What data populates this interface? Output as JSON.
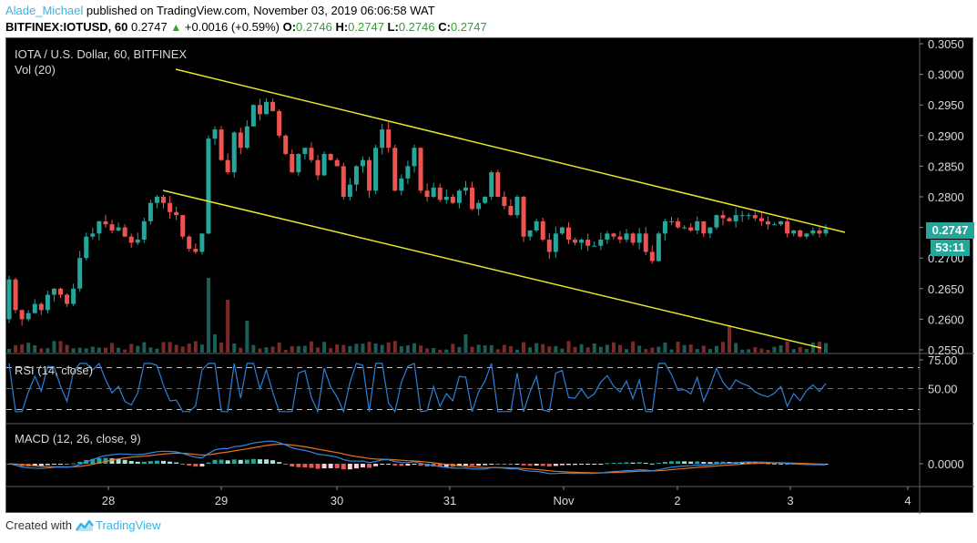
{
  "header": {
    "author": "Alade_Michael",
    "published_text": " published on TradingView.com, November 03, 2019 06:06:58 WAT",
    "symbol": "BITFINEX:IOTUSD, 60",
    "last_price": "0.2747",
    "change_arrow": "▲",
    "change": "+0.0016 (+0.59%)",
    "open_label": "O:",
    "open": "0.2746",
    "high_label": "H:",
    "high": "0.2747",
    "low_label": "L:",
    "low": "0.2746",
    "close_label": "C:",
    "close": "0.2747"
  },
  "legends": {
    "title": "IOTA / U.S. Dollar, 60, BITFINEX",
    "volume": "Vol (20)",
    "rsi": "RSI (14, close)",
    "macd": "MACD (12, 26, close, 9)"
  },
  "price_tag": {
    "price": "0.2747",
    "timer": "53:11"
  },
  "footer": {
    "created_with": "Created with",
    "brand": "TradingView"
  },
  "colors": {
    "up": "#26a69a",
    "down": "#ef5350",
    "vol_up": "#1b5e57",
    "vol_down": "#7b2a2a",
    "trendline": "#e6e62e",
    "rsi": "#2e7fd6",
    "macd": "#2e8ae6",
    "signal": "#e8731a",
    "hist_up_strong": "#26a69a",
    "hist_up_weak": "#b2dfdb",
    "hist_down_strong": "#ef5350",
    "hist_down_weak": "#ffcdd2",
    "background": "#000000",
    "axis_text": "#d9d9d9"
  },
  "chart_data": {
    "type": "candlestick",
    "title": "IOTA / U.S. Dollar, 60, BITFINEX",
    "price_axis": {
      "ticks": [
        "0.3050",
        "0.3000",
        "0.2950",
        "0.2900",
        "0.2850",
        "0.2800",
        "0.2750",
        "0.2700",
        "0.2650",
        "0.2600",
        "0.2550"
      ],
      "range": [
        0.255,
        0.305
      ]
    },
    "time_axis": {
      "ticks": [
        "28",
        "29",
        "30",
        "31",
        "Nov",
        "2",
        "3",
        "4"
      ]
    },
    "rsi_axis": {
      "ticks": [
        "75.00",
        "50.00"
      ],
      "bands": [
        70,
        50,
        30
      ]
    },
    "macd_axis": {
      "ticks": [
        "0.0000"
      ]
    },
    "trendlines": [
      {
        "name": "upper-channel",
        "from": [
          0.3012,
          "Oct 28 12:00"
        ],
        "to": [
          0.2749,
          "Nov 03 08:00"
        ]
      },
      {
        "name": "lower-channel",
        "from": [
          0.2815,
          "Oct 28 12:00"
        ],
        "to": [
          0.2563,
          "Nov 03 04:00"
        ]
      }
    ],
    "ohlc_closes_approx": [
      0.2665,
      0.2615,
      0.26,
      0.261,
      0.2625,
      0.2615,
      0.264,
      0.265,
      0.264,
      0.2625,
      0.265,
      0.27,
      0.2735,
      0.274,
      0.276,
      0.2755,
      0.2745,
      0.275,
      0.2735,
      0.2725,
      0.273,
      0.276,
      0.279,
      0.28,
      0.279,
      0.2775,
      0.277,
      0.2735,
      0.2715,
      0.271,
      0.274,
      0.2895,
      0.291,
      0.286,
      0.284,
      0.2905,
      0.288,
      0.2915,
      0.295,
      0.2935,
      0.2955,
      0.294,
      0.29,
      0.287,
      0.284,
      0.287,
      0.288,
      0.286,
      0.2835,
      0.287,
      0.286,
      0.285,
      0.28,
      0.282,
      0.285,
      0.286,
      0.281,
      0.288,
      0.291,
      0.288,
      0.281,
      0.283,
      0.285,
      0.288,
      0.281,
      0.28,
      0.2815,
      0.2795,
      0.28,
      0.279,
      0.281,
      0.2815,
      0.278,
      0.279,
      0.28,
      0.284,
      0.28,
      0.2785,
      0.277,
      0.28,
      0.2735,
      0.2745,
      0.276,
      0.273,
      0.271,
      0.274,
      0.275,
      0.273,
      0.2725,
      0.273,
      0.272,
      0.272,
      0.273,
      0.274,
      0.2735,
      0.273,
      0.274,
      0.2725,
      0.274,
      0.271,
      0.2695,
      0.274,
      0.276,
      0.276,
      0.275,
      0.275,
      0.2745,
      0.276,
      0.274,
      0.275,
      0.277,
      0.2765,
      0.276,
      0.277,
      0.277,
      0.277,
      0.2765,
      0.276,
      0.2755,
      0.2755,
      0.276,
      0.274,
      0.2745,
      0.2735,
      0.274,
      0.2745,
      0.274,
      0.2747
    ],
    "last_price": 0.2747,
    "rsi_range": [
      20,
      80
    ],
    "legend_position": "top-left"
  }
}
